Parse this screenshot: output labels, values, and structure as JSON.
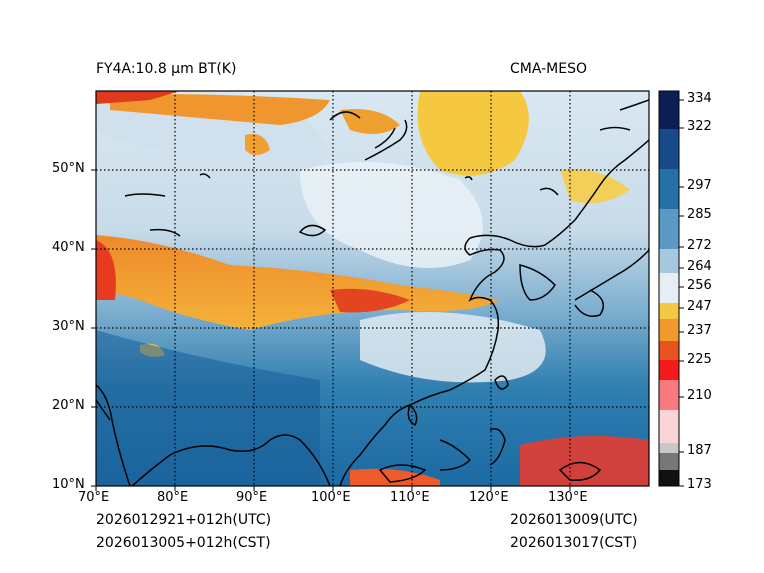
{
  "title_left": "FY4A:10.8 μm BT(K)",
  "title_right": "CMA-MESO",
  "footer": {
    "init_utc": "2026012921+012h(UTC)",
    "init_cst": "2026013005+012h(CST)",
    "valid_utc": "2026013009(UTC)",
    "valid_cst": "2026013017(CST)"
  },
  "map": {
    "lon_range": [
      70,
      140
    ],
    "lat_range": [
      10,
      60
    ],
    "lon_ticks": [
      "70°E",
      "80°E",
      "90°E",
      "100°E",
      "110°E",
      "120°E",
      "130°E"
    ],
    "lat_ticks": [
      "50°N",
      "40°N",
      "30°N",
      "20°N",
      "10°N"
    ]
  },
  "colorbar": {
    "unit": "K",
    "range": [
      173,
      340
    ],
    "ticks": [
      "334",
      "322",
      "297",
      "285",
      "272",
      "264",
      "256",
      "247",
      "237",
      "225",
      "210",
      "187",
      "173"
    ],
    "tick_values": [
      334,
      322,
      297,
      285,
      272,
      264,
      256,
      247,
      237,
      225,
      210,
      187,
      173
    ]
  }
}
